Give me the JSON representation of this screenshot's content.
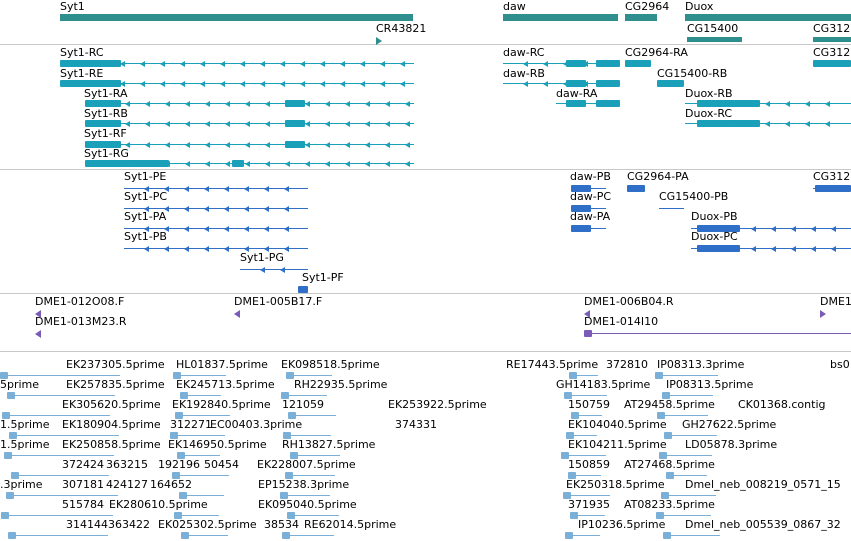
{
  "colors": {
    "gene": "#2f8f8f",
    "transcript": "#1aa0b8",
    "protein": "#2f6fc8",
    "clone": "#7a5cb8",
    "est": "#7ab0d8",
    "divider": "#c8c8c8"
  },
  "gene_track": [
    {
      "label": "Syt1"
    },
    {
      "label": "CR43821"
    },
    {
      "label": "daw"
    },
    {
      "label": "CG2964"
    },
    {
      "label": "Duox"
    },
    {
      "label": "CG15400"
    },
    {
      "label": "CG312"
    }
  ],
  "transcript_track": [
    {
      "label": "Syt1-RC"
    },
    {
      "label": "Syt1-RE"
    },
    {
      "label": "Syt1-RA"
    },
    {
      "label": "Syt1-RB"
    },
    {
      "label": "Syt1-RF"
    },
    {
      "label": "Syt1-RG"
    },
    {
      "label": "daw-RC"
    },
    {
      "label": "daw-RB"
    },
    {
      "label": "daw-RA"
    },
    {
      "label": "CG2964-RA"
    },
    {
      "label": "CG15400-RB"
    },
    {
      "label": "Duox-RB"
    },
    {
      "label": "Duox-RC"
    },
    {
      "label": "CG312"
    }
  ],
  "protein_track": [
    {
      "label": "Syt1-PE"
    },
    {
      "label": "Syt1-PC"
    },
    {
      "label": "Syt1-PA"
    },
    {
      "label": "Syt1-PB"
    },
    {
      "label": "Syt1-PG"
    },
    {
      "label": "Syt1-PF"
    },
    {
      "label": "daw-PB"
    },
    {
      "label": "daw-PC"
    },
    {
      "label": "daw-PA"
    },
    {
      "label": "CG2964-PA"
    },
    {
      "label": "CG15400-PB"
    },
    {
      "label": "Duox-PB"
    },
    {
      "label": "Duox-PC"
    },
    {
      "label": "CG312"
    }
  ],
  "clone_track": [
    {
      "label": "DME1-012O08.F"
    },
    {
      "label": "DME1-005B17.F"
    },
    {
      "label": "DME1-006B04.R"
    },
    {
      "label": "DME1"
    },
    {
      "label": "DME1-013M23.R"
    },
    {
      "label": "DME1-014I10"
    }
  ],
  "est_track": [
    {
      "label": "EK237305.5prime"
    },
    {
      "label": "HL01837.5prime"
    },
    {
      "label": "EK098518.5prime"
    },
    {
      "label": "RE17443.5prime"
    },
    {
      "label": "372810"
    },
    {
      "label": "IP08313.3prime"
    },
    {
      "label": "bs0"
    },
    {
      "label": "5prime"
    },
    {
      "label": "EK257835.5prime"
    },
    {
      "label": "EK245713.5prime"
    },
    {
      "label": "RH22935.5prime"
    },
    {
      "label": "GH14183.5prime"
    },
    {
      "label": "IP08313.5prime"
    },
    {
      "label": "EK305620.5prime"
    },
    {
      "label": "EK192840.5prime"
    },
    {
      "label": "121059"
    },
    {
      "label": "EK253922.5prime"
    },
    {
      "label": "150759"
    },
    {
      "label": "AT29458.5prime"
    },
    {
      "label": "CK01368.contig"
    },
    {
      "label": "1.5prime"
    },
    {
      "label": "EK180904.5prime"
    },
    {
      "label": "312271"
    },
    {
      "label": "EC00403.3prime"
    },
    {
      "label": "374331"
    },
    {
      "label": "EK104040.5prime"
    },
    {
      "label": "GH27622.5prime"
    },
    {
      "label": "1.5prime"
    },
    {
      "label": "EK250858.5prime"
    },
    {
      "label": "EK146950.5prime"
    },
    {
      "label": "RH13827.5prime"
    },
    {
      "label": "EK104211.5prime"
    },
    {
      "label": "LD05878.3prime"
    },
    {
      "label": "372424"
    },
    {
      "label": "363215"
    },
    {
      "label": "192196"
    },
    {
      "label": "50454"
    },
    {
      "label": "EK228007.5prime"
    },
    {
      "label": "150859"
    },
    {
      "label": "AT27468.5prime"
    },
    {
      "label": ".3prime"
    },
    {
      "label": "307181"
    },
    {
      "label": "424127"
    },
    {
      "label": "164652"
    },
    {
      "label": "EP15238.3prime"
    },
    {
      "label": "EK250318.5prime"
    },
    {
      "label": "Dmel_neb_008219_0571_15"
    },
    {
      "label": "515784"
    },
    {
      "label": "EK280610.5prime"
    },
    {
      "label": "EK095040.5prime"
    },
    {
      "label": "371935"
    },
    {
      "label": "AT08233.5prime"
    },
    {
      "label": "314144"
    },
    {
      "label": "363422"
    },
    {
      "label": "EK025302.5prime"
    },
    {
      "label": "38534"
    },
    {
      "label": "RE62014.5prime"
    },
    {
      "label": "IP10236.5prime"
    },
    {
      "label": "Dmel_neb_005539_0867_32"
    }
  ]
}
